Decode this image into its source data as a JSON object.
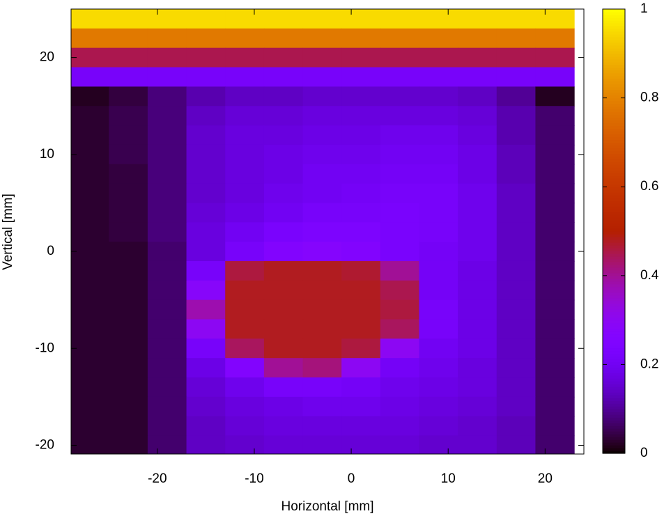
{
  "chart_data": {
    "type": "heatmap",
    "xlabel": "Horizontal [mm]",
    "ylabel": "Vertical [mm]",
    "colormap": "gnuplot",
    "xlim": [
      -28.9,
      24
    ],
    "ylim": [
      -20.9,
      25
    ],
    "xticks": [
      -20,
      -10,
      0,
      10,
      20
    ],
    "yticks": [
      -20,
      -10,
      0,
      10,
      20
    ],
    "clim": [
      0,
      1
    ],
    "cticks": [
      0,
      0.2,
      0.4,
      0.6,
      0.8,
      1
    ],
    "x": [
      -27,
      -23,
      -19,
      -15,
      -11,
      -7,
      -3,
      1,
      5,
      9,
      13,
      17,
      21
    ],
    "y": [
      24,
      22,
      20,
      18,
      16,
      14,
      12,
      10,
      8,
      6,
      4,
      2,
      0,
      -2,
      -4,
      -6,
      -8,
      -10,
      -12,
      -14,
      -16,
      -18,
      -20
    ],
    "z": [
      [
        0.95,
        0.95,
        0.95,
        0.95,
        0.95,
        0.95,
        0.95,
        0.95,
        0.95,
        0.95,
        0.95,
        0.95,
        0.95
      ],
      [
        0.78,
        0.78,
        0.78,
        0.78,
        0.78,
        0.78,
        0.78,
        0.78,
        0.78,
        0.78,
        0.78,
        0.78,
        0.78
      ],
      [
        0.45,
        0.45,
        0.45,
        0.45,
        0.45,
        0.45,
        0.45,
        0.45,
        0.45,
        0.45,
        0.45,
        0.45,
        0.45
      ],
      [
        0.22,
        0.22,
        0.22,
        0.22,
        0.22,
        0.22,
        0.22,
        0.22,
        0.22,
        0.22,
        0.22,
        0.22,
        0.22
      ],
      [
        0.02,
        0.04,
        0.08,
        0.12,
        0.14,
        0.14,
        0.15,
        0.15,
        0.15,
        0.15,
        0.14,
        0.1,
        0.02
      ],
      [
        0.03,
        0.05,
        0.08,
        0.14,
        0.16,
        0.16,
        0.17,
        0.17,
        0.17,
        0.17,
        0.16,
        0.12,
        0.07
      ],
      [
        0.03,
        0.05,
        0.08,
        0.15,
        0.17,
        0.17,
        0.18,
        0.18,
        0.19,
        0.19,
        0.17,
        0.12,
        0.07
      ],
      [
        0.03,
        0.05,
        0.08,
        0.15,
        0.17,
        0.18,
        0.19,
        0.19,
        0.2,
        0.2,
        0.18,
        0.13,
        0.07
      ],
      [
        0.03,
        0.04,
        0.08,
        0.15,
        0.17,
        0.18,
        0.2,
        0.2,
        0.21,
        0.21,
        0.18,
        0.13,
        0.07
      ],
      [
        0.03,
        0.04,
        0.08,
        0.15,
        0.17,
        0.19,
        0.2,
        0.21,
        0.22,
        0.22,
        0.19,
        0.14,
        0.07
      ],
      [
        0.03,
        0.04,
        0.08,
        0.16,
        0.18,
        0.2,
        0.22,
        0.22,
        0.23,
        0.22,
        0.19,
        0.14,
        0.07
      ],
      [
        0.03,
        0.04,
        0.08,
        0.17,
        0.2,
        0.23,
        0.24,
        0.24,
        0.23,
        0.22,
        0.19,
        0.14,
        0.07
      ],
      [
        0.03,
        0.03,
        0.07,
        0.17,
        0.22,
        0.26,
        0.27,
        0.26,
        0.23,
        0.21,
        0.19,
        0.14,
        0.07
      ],
      [
        0.03,
        0.03,
        0.07,
        0.22,
        0.46,
        0.48,
        0.48,
        0.47,
        0.4,
        0.21,
        0.18,
        0.14,
        0.07
      ],
      [
        0.03,
        0.03,
        0.07,
        0.28,
        0.48,
        0.48,
        0.48,
        0.48,
        0.45,
        0.21,
        0.18,
        0.14,
        0.07
      ],
      [
        0.03,
        0.03,
        0.07,
        0.38,
        0.48,
        0.48,
        0.48,
        0.48,
        0.46,
        0.22,
        0.18,
        0.14,
        0.07
      ],
      [
        0.03,
        0.03,
        0.07,
        0.3,
        0.48,
        0.48,
        0.48,
        0.48,
        0.44,
        0.22,
        0.18,
        0.14,
        0.07
      ],
      [
        0.03,
        0.03,
        0.07,
        0.22,
        0.44,
        0.48,
        0.48,
        0.46,
        0.3,
        0.2,
        0.18,
        0.14,
        0.07
      ],
      [
        0.03,
        0.03,
        0.07,
        0.18,
        0.26,
        0.4,
        0.42,
        0.3,
        0.21,
        0.19,
        0.17,
        0.14,
        0.07
      ],
      [
        0.03,
        0.03,
        0.07,
        0.16,
        0.19,
        0.22,
        0.22,
        0.21,
        0.19,
        0.18,
        0.17,
        0.14,
        0.07
      ],
      [
        0.03,
        0.03,
        0.07,
        0.15,
        0.17,
        0.18,
        0.19,
        0.19,
        0.18,
        0.17,
        0.16,
        0.14,
        0.07
      ],
      [
        0.03,
        0.03,
        0.07,
        0.14,
        0.16,
        0.17,
        0.17,
        0.17,
        0.17,
        0.16,
        0.15,
        0.13,
        0.07
      ],
      [
        0.03,
        0.03,
        0.07,
        0.14,
        0.15,
        0.16,
        0.16,
        0.16,
        0.16,
        0.15,
        0.15,
        0.13,
        0.07
      ]
    ]
  }
}
